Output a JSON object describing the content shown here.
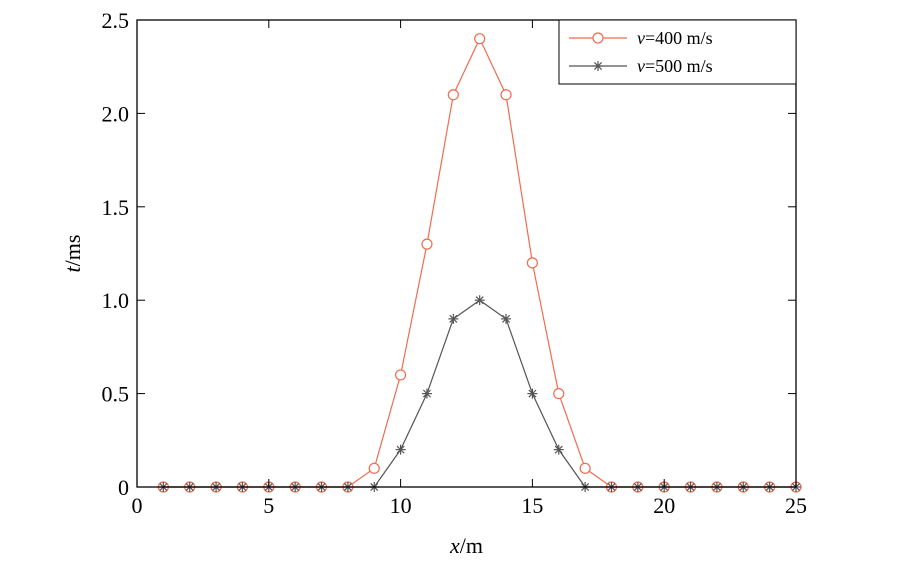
{
  "chart_data": {
    "type": "line",
    "title": "",
    "xlabel": {
      "var": "x",
      "unit": "/m"
    },
    "ylabel": {
      "var": "t",
      "unit": "/ms"
    },
    "xlim": [
      0,
      25
    ],
    "ylim": [
      0,
      2.5
    ],
    "xticks": [
      0,
      5,
      10,
      15,
      20,
      25
    ],
    "yticks": [
      0,
      0.5,
      1.0,
      1.5,
      2.0,
      2.5
    ],
    "xtick_labels": [
      "0",
      "5",
      "10",
      "15",
      "20",
      "25"
    ],
    "ytick_labels": [
      "0",
      "0.5",
      "1.0",
      "1.5",
      "2.0",
      "2.5"
    ],
    "grid": false,
    "legend_position": "top-right",
    "x": [
      1,
      2,
      3,
      4,
      5,
      6,
      7,
      8,
      9,
      10,
      11,
      12,
      13,
      14,
      15,
      16,
      17,
      18,
      19,
      20,
      21,
      22,
      23,
      24,
      25
    ],
    "series": [
      {
        "legend_var": "v",
        "legend_rest": "=400 m/s",
        "color": "#f26b4f",
        "marker": "circle",
        "values": [
          0,
          0,
          0,
          0,
          0,
          0,
          0,
          0,
          0.1,
          0.6,
          1.3,
          2.1,
          2.4,
          2.1,
          1.2,
          0.5,
          0.1,
          0,
          0,
          0,
          0,
          0,
          0,
          0,
          0
        ]
      },
      {
        "legend_var": "v",
        "legend_rest": "=500 m/s",
        "color": "#555555",
        "marker": "asterisk",
        "values": [
          0,
          0,
          0,
          0,
          0,
          0,
          0,
          0,
          0,
          0.2,
          0.5,
          0.9,
          1.0,
          0.9,
          0.5,
          0.2,
          0,
          0,
          0,
          0,
          0,
          0,
          0,
          0,
          0
        ]
      }
    ]
  }
}
